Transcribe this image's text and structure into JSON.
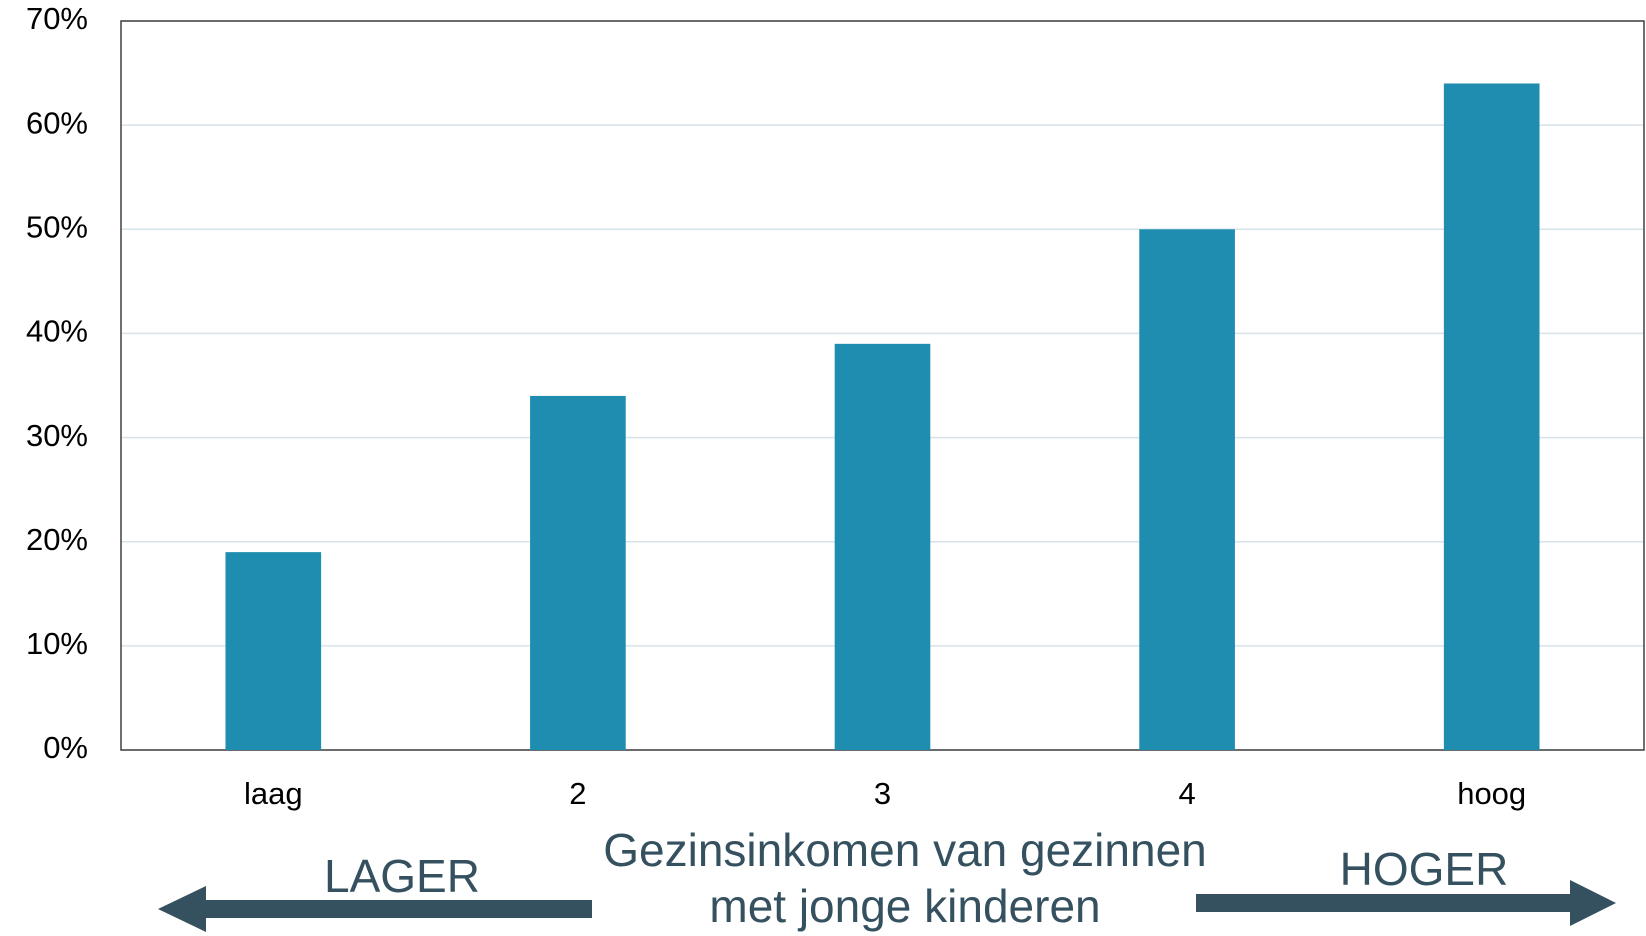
{
  "chart_data": {
    "type": "bar",
    "categories": [
      "laag",
      "2",
      "3",
      "4",
      "hoog"
    ],
    "values": [
      19,
      34,
      39,
      50,
      64
    ],
    "color": "#1f8db0",
    "ylim": [
      0,
      70
    ],
    "yticks": [
      {
        "value": 0,
        "label": "0%"
      },
      {
        "value": 10,
        "label": "10%"
      },
      {
        "value": 20,
        "label": "20%"
      },
      {
        "value": 30,
        "label": "30%"
      },
      {
        "value": 40,
        "label": "40%"
      },
      {
        "value": 50,
        "label": "50%"
      },
      {
        "value": 60,
        "label": "60%"
      },
      {
        "value": 70,
        "label": "70%"
      }
    ],
    "grid": true,
    "x_label": [
      "Gezinsinkomen van gezinnen",
      "met jonge kinderen"
    ],
    "annotations": [
      "LAGER",
      "HOGER"
    ]
  }
}
